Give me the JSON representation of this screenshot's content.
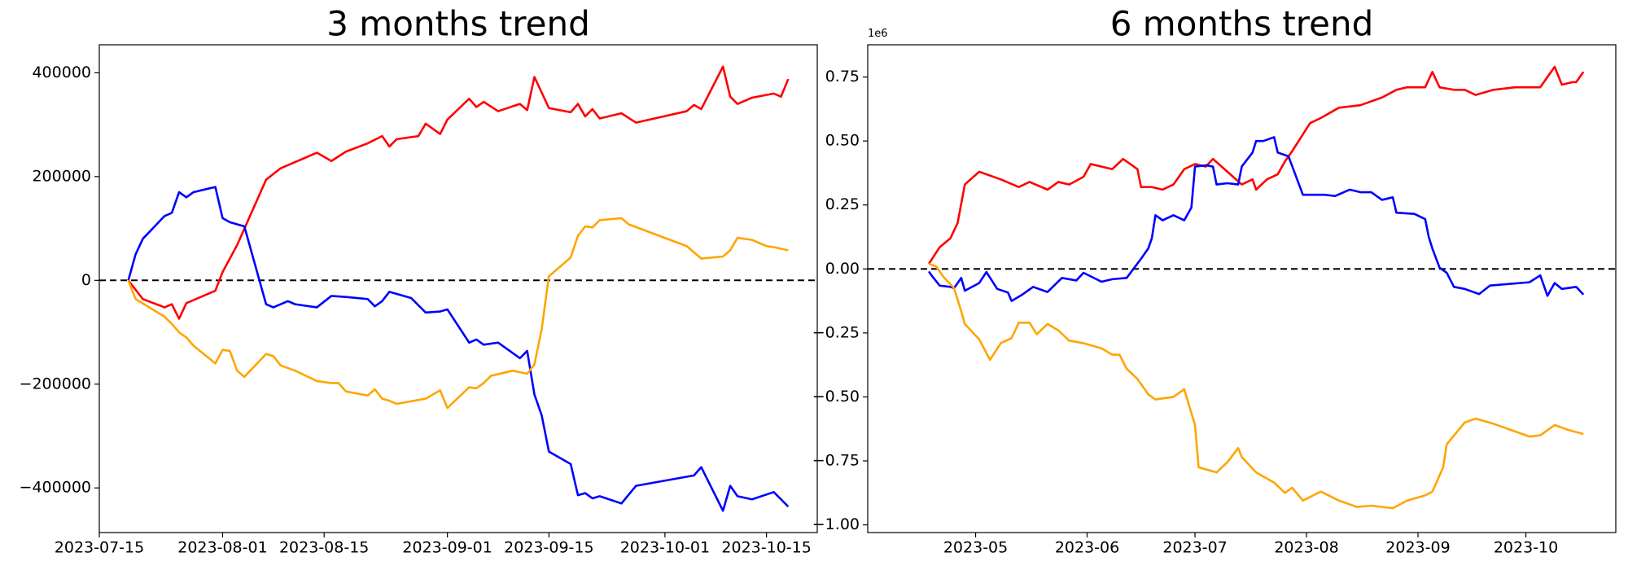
{
  "chart_data": [
    {
      "type": "line",
      "title": "3 months trend",
      "xlim": [
        "2023-07-15",
        "2023-10-22"
      ],
      "xticks": [
        "2023-07-15",
        "2023-08-01",
        "2023-08-15",
        "2023-09-01",
        "2023-09-15",
        "2023-10-01",
        "2023-10-15"
      ],
      "ylim": [
        -486000,
        454000
      ],
      "yticks": [
        {
          "value": -400000,
          "label": "−400000"
        },
        {
          "value": -200000,
          "label": "−200000"
        },
        0,
        200000,
        400000
      ],
      "reference_line": 0,
      "series": [
        {
          "color": "#ff0000",
          "x": [
            "2023-07-19",
            "2023-07-21",
            "2023-07-24",
            "2023-07-25",
            "2023-07-26",
            "2023-07-27",
            "2023-07-31",
            "2023-08-01",
            "2023-08-03",
            "2023-08-07",
            "2023-08-09",
            "2023-08-14",
            "2023-08-16",
            "2023-08-18",
            "2023-08-21",
            "2023-08-23",
            "2023-08-24",
            "2023-08-25",
            "2023-08-28",
            "2023-08-29",
            "2023-08-31",
            "2023-09-01",
            "2023-09-04",
            "2023-09-05",
            "2023-09-06",
            "2023-09-08",
            "2023-09-11",
            "2023-09-12",
            "2023-09-13",
            "2023-09-15",
            "2023-09-18",
            "2023-09-19",
            "2023-09-20",
            "2023-09-21",
            "2023-09-22",
            "2023-09-25",
            "2023-09-27",
            "2023-10-04",
            "2023-10-05",
            "2023-10-06",
            "2023-10-09",
            "2023-10-10",
            "2023-10-11",
            "2023-10-13",
            "2023-10-16",
            "2023-10-17",
            "2023-10-18"
          ],
          "values": [
            0,
            -36000,
            -52000,
            -46000,
            -74000,
            -44000,
            -20000,
            16000,
            68000,
            194000,
            216000,
            246000,
            230000,
            248000,
            264000,
            278000,
            258000,
            272000,
            278000,
            302000,
            282000,
            310000,
            350000,
            334000,
            344000,
            326000,
            340000,
            328000,
            392000,
            332000,
            324000,
            340000,
            316000,
            330000,
            312000,
            322000,
            304000,
            326000,
            338000,
            330000,
            412000,
            354000,
            340000,
            352000,
            360000,
            354000,
            388000
          ]
        },
        {
          "color": "#0000ff",
          "x": [
            "2023-07-19",
            "2023-07-20",
            "2023-07-21",
            "2023-07-24",
            "2023-07-25",
            "2023-07-26",
            "2023-07-27",
            "2023-07-28",
            "2023-07-31",
            "2023-08-01",
            "2023-08-02",
            "2023-08-04",
            "2023-08-07",
            "2023-08-08",
            "2023-08-10",
            "2023-08-11",
            "2023-08-14",
            "2023-08-16",
            "2023-08-18",
            "2023-08-21",
            "2023-08-22",
            "2023-08-23",
            "2023-08-24",
            "2023-08-27",
            "2023-08-29",
            "2023-08-31",
            "2023-09-01",
            "2023-09-04",
            "2023-09-05",
            "2023-09-06",
            "2023-09-08",
            "2023-09-11",
            "2023-09-12",
            "2023-09-13",
            "2023-09-14",
            "2023-09-15",
            "2023-09-18",
            "2023-09-19",
            "2023-09-20",
            "2023-09-21",
            "2023-09-22",
            "2023-09-25",
            "2023-09-27",
            "2023-10-05",
            "2023-10-06",
            "2023-10-09",
            "2023-10-10",
            "2023-10-11",
            "2023-10-13",
            "2023-10-16",
            "2023-10-18"
          ],
          "values": [
            0,
            50000,
            80000,
            124000,
            130000,
            170000,
            160000,
            170000,
            180000,
            120000,
            112000,
            104000,
            -46000,
            -52000,
            -40000,
            -46000,
            -52000,
            -30000,
            -32000,
            -36000,
            -50000,
            -40000,
            -22000,
            -34000,
            -62000,
            -60000,
            -56000,
            -120000,
            -114000,
            -124000,
            -120000,
            -150000,
            -136000,
            -220000,
            -260000,
            -330000,
            -354000,
            -414000,
            -410000,
            -420000,
            -416000,
            -430000,
            -396000,
            -376000,
            -360000,
            -444000,
            -396000,
            -416000,
            -422000,
            -408000,
            -436000
          ]
        },
        {
          "color": "#ffa500",
          "x": [
            "2023-07-19",
            "2023-07-20",
            "2023-07-24",
            "2023-07-25",
            "2023-07-26",
            "2023-07-27",
            "2023-07-28",
            "2023-07-31",
            "2023-08-01",
            "2023-08-02",
            "2023-08-03",
            "2023-08-04",
            "2023-08-07",
            "2023-08-08",
            "2023-08-09",
            "2023-08-11",
            "2023-08-14",
            "2023-08-16",
            "2023-08-17",
            "2023-08-18",
            "2023-08-21",
            "2023-08-22",
            "2023-08-23",
            "2023-08-24",
            "2023-08-25",
            "2023-08-29",
            "2023-08-30",
            "2023-08-31",
            "2023-09-01",
            "2023-09-04",
            "2023-09-05",
            "2023-09-06",
            "2023-09-07",
            "2023-09-10",
            "2023-09-12",
            "2023-09-13",
            "2023-09-14",
            "2023-09-15",
            "2023-09-18",
            "2023-09-19",
            "2023-09-20",
            "2023-09-21",
            "2023-09-22",
            "2023-09-25",
            "2023-09-26",
            "2023-10-04",
            "2023-10-06",
            "2023-10-09",
            "2023-10-10",
            "2023-10-11",
            "2023-10-13",
            "2023-10-15",
            "2023-10-16",
            "2023-10-18"
          ],
          "values": [
            0,
            -36000,
            -70000,
            -84000,
            -100000,
            -110000,
            -126000,
            -160000,
            -134000,
            -136000,
            -174000,
            -186000,
            -142000,
            -146000,
            -164000,
            -174000,
            -194000,
            -198000,
            -198000,
            -214000,
            -222000,
            -210000,
            -228000,
            -232000,
            -238000,
            -228000,
            -220000,
            -212000,
            -246000,
            -206000,
            -208000,
            -198000,
            -184000,
            -174000,
            -180000,
            -162000,
            -94000,
            8000,
            44000,
            86000,
            104000,
            102000,
            116000,
            120000,
            108000,
            66000,
            42000,
            46000,
            58000,
            82000,
            78000,
            66000,
            64000,
            58000
          ]
        }
      ]
    },
    {
      "type": "line",
      "title": "6 months trend",
      "y_offset_text": "1e6",
      "xlim": [
        "2023-04-01",
        "2023-10-26"
      ],
      "xticks": [
        {
          "value": "2023-05-01",
          "label": "2023-05"
        },
        {
          "value": "2023-06-01",
          "label": "2023-06"
        },
        {
          "value": "2023-07-01",
          "label": "2023-07"
        },
        {
          "value": "2023-08-01",
          "label": "2023-08"
        },
        {
          "value": "2023-09-01",
          "label": "2023-09"
        },
        {
          "value": "2023-10-01",
          "label": "2023-10"
        }
      ],
      "ylim": [
        -1.03,
        0.876
      ],
      "yticks": [
        {
          "value": -1,
          "label": "−1.00"
        },
        {
          "value": -0.75,
          "label": "−0.75"
        },
        {
          "value": -0.5,
          "label": "−0.50"
        },
        {
          "value": -0.25,
          "label": "−0.25"
        },
        {
          "value": 0,
          "label": "0.00"
        },
        0.25,
        {
          "value": 0.5,
          "label": "0.50"
        },
        0.75
      ],
      "reference_line": 0,
      "series": [
        {
          "color": "#ff0000",
          "x": [
            "2023-04-18",
            "2023-04-21",
            "2023-04-24",
            "2023-04-26",
            "2023-04-28",
            "2023-05-02",
            "2023-05-08",
            "2023-05-13",
            "2023-05-16",
            "2023-05-21",
            "2023-05-24",
            "2023-05-27",
            "2023-05-31",
            "2023-06-02",
            "2023-06-08",
            "2023-06-11",
            "2023-06-15",
            "2023-06-16",
            "2023-06-19",
            "2023-06-22",
            "2023-06-25",
            "2023-06-28",
            "2023-07-01",
            "2023-07-04",
            "2023-07-06",
            "2023-07-10",
            "2023-07-14",
            "2023-07-17",
            "2023-07-18",
            "2023-07-21",
            "2023-07-24",
            "2023-07-26",
            "2023-07-28",
            "2023-08-02",
            "2023-08-05",
            "2023-08-10",
            "2023-08-16",
            "2023-08-22",
            "2023-08-26",
            "2023-08-29",
            "2023-09-03",
            "2023-09-05",
            "2023-09-07",
            "2023-09-11",
            "2023-09-14",
            "2023-09-17",
            "2023-09-22",
            "2023-09-28",
            "2023-10-05",
            "2023-10-09",
            "2023-10-11",
            "2023-10-14",
            "2023-10-15",
            "2023-10-17"
          ],
          "values": [
            0.02,
            0.085,
            0.12,
            0.18,
            0.33,
            0.38,
            0.35,
            0.32,
            0.34,
            0.31,
            0.34,
            0.33,
            0.36,
            0.41,
            0.39,
            0.43,
            0.39,
            0.32,
            0.32,
            0.31,
            0.33,
            0.39,
            0.41,
            0.4,
            0.43,
            0.38,
            0.33,
            0.35,
            0.31,
            0.35,
            0.37,
            0.42,
            0.46,
            0.57,
            0.59,
            0.63,
            0.64,
            0.67,
            0.7,
            0.71,
            0.71,
            0.77,
            0.71,
            0.7,
            0.7,
            0.68,
            0.7,
            0.71,
            0.71,
            0.79,
            0.72,
            0.73,
            0.73,
            0.77
          ]
        },
        {
          "color": "#0000ff",
          "x": [
            "2023-04-18",
            "2023-04-19",
            "2023-04-21",
            "2023-04-24",
            "2023-04-25",
            "2023-04-27",
            "2023-04-28",
            "2023-05-02",
            "2023-05-04",
            "2023-05-07",
            "2023-05-10",
            "2023-05-11",
            "2023-05-14",
            "2023-05-17",
            "2023-05-21",
            "2023-05-25",
            "2023-05-29",
            "2023-05-31",
            "2023-06-05",
            "2023-06-08",
            "2023-06-12",
            "2023-06-16",
            "2023-06-18",
            "2023-06-19",
            "2023-06-20",
            "2023-06-22",
            "2023-06-25",
            "2023-06-28",
            "2023-06-30",
            "2023-07-01",
            "2023-07-04",
            "2023-07-06",
            "2023-07-07",
            "2023-07-10",
            "2023-07-13",
            "2023-07-14",
            "2023-07-17",
            "2023-07-18",
            "2023-07-20",
            "2023-07-23",
            "2023-07-24",
            "2023-07-27",
            "2023-07-31",
            "2023-08-06",
            "2023-08-09",
            "2023-08-13",
            "2023-08-16",
            "2023-08-19",
            "2023-08-22",
            "2023-08-25",
            "2023-08-26",
            "2023-08-31",
            "2023-09-03",
            "2023-09-04",
            "2023-09-05",
            "2023-09-07",
            "2023-09-09",
            "2023-09-11",
            "2023-09-14",
            "2023-09-18",
            "2023-09-21",
            "2023-10-02",
            "2023-10-05",
            "2023-10-07",
            "2023-10-09",
            "2023-10-11",
            "2023-10-15",
            "2023-10-17"
          ],
          "values": [
            -0.01,
            -0.03,
            -0.065,
            -0.07,
            -0.075,
            -0.035,
            -0.085,
            -0.055,
            -0.012,
            -0.078,
            -0.092,
            -0.125,
            -0.1,
            -0.07,
            -0.09,
            -0.035,
            -0.045,
            -0.015,
            -0.05,
            -0.04,
            -0.035,
            0.04,
            0.08,
            0.12,
            0.21,
            0.19,
            0.21,
            0.19,
            0.24,
            0.4,
            0.405,
            0.4,
            0.33,
            0.335,
            0.33,
            0.4,
            0.455,
            0.5,
            0.5,
            0.515,
            0.455,
            0.44,
            0.29,
            0.29,
            0.285,
            0.31,
            0.3,
            0.3,
            0.27,
            0.28,
            0.22,
            0.215,
            0.195,
            0.125,
            0.08,
            0.005,
            -0.015,
            -0.07,
            -0.078,
            -0.098,
            -0.065,
            -0.052,
            -0.025,
            -0.105,
            -0.055,
            -0.078,
            -0.07,
            -0.1
          ]
        },
        {
          "color": "#ffa500",
          "x": [
            "2023-04-18",
            "2023-04-20",
            "2023-04-22",
            "2023-04-25",
            "2023-04-27",
            "2023-04-28",
            "2023-05-02",
            "2023-05-05",
            "2023-05-08",
            "2023-05-11",
            "2023-05-13",
            "2023-05-16",
            "2023-05-18",
            "2023-05-21",
            "2023-05-24",
            "2023-05-27",
            "2023-05-31",
            "2023-06-05",
            "2023-06-08",
            "2023-06-10",
            "2023-06-12",
            "2023-06-15",
            "2023-06-18",
            "2023-06-20",
            "2023-06-25",
            "2023-06-28",
            "2023-07-01",
            "2023-07-02",
            "2023-07-07",
            "2023-07-10",
            "2023-07-13",
            "2023-07-14",
            "2023-07-18",
            "2023-07-23",
            "2023-07-26",
            "2023-07-28",
            "2023-07-31",
            "2023-08-05",
            "2023-08-10",
            "2023-08-15",
            "2023-08-19",
            "2023-08-25",
            "2023-08-29",
            "2023-09-03",
            "2023-09-05",
            "2023-09-08",
            "2023-09-09",
            "2023-09-14",
            "2023-09-17",
            "2023-09-22",
            "2023-10-02",
            "2023-10-05",
            "2023-10-09",
            "2023-10-13",
            "2023-10-17"
          ],
          "values": [
            0.02,
            0.01,
            -0.03,
            -0.075,
            -0.165,
            -0.215,
            -0.275,
            -0.355,
            -0.29,
            -0.27,
            -0.21,
            -0.21,
            -0.255,
            -0.215,
            -0.24,
            -0.28,
            -0.29,
            -0.31,
            -0.335,
            -0.335,
            -0.39,
            -0.43,
            -0.49,
            -0.51,
            -0.5,
            -0.47,
            -0.61,
            -0.775,
            -0.795,
            -0.755,
            -0.7,
            -0.735,
            -0.795,
            -0.835,
            -0.875,
            -0.855,
            -0.905,
            -0.87,
            -0.905,
            -0.93,
            -0.925,
            -0.935,
            -0.905,
            -0.885,
            -0.87,
            -0.775,
            -0.685,
            -0.6,
            -0.585,
            -0.605,
            -0.655,
            -0.65,
            -0.61,
            -0.63,
            -0.645
          ]
        }
      ]
    }
  ]
}
